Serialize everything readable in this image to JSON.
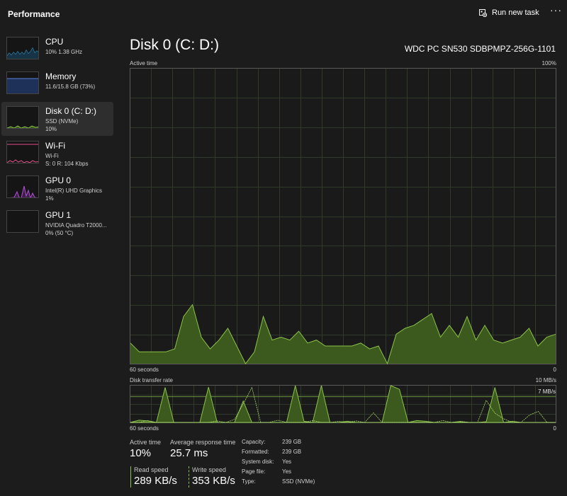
{
  "header": {
    "title": "Performance",
    "run_task_label": "Run new task",
    "more_label": "···"
  },
  "sidebar": {
    "items": [
      {
        "title": "CPU",
        "line1": "10%  1.38 GHz",
        "line2": "",
        "color": "#36a2d8"
      },
      {
        "title": "Memory",
        "line1": "11.6/15.8 GB (73%)",
        "line2": "",
        "color": "#5b7fd6"
      },
      {
        "title": "Disk 0 (C: D:)",
        "line1": "SSD (NVMe)",
        "line2": "10%",
        "color": "#8bc34a"
      },
      {
        "title": "Wi-Fi",
        "line1": "Wi-Fi",
        "line2": "S: 0  R: 104 Kbps",
        "color": "#e0508a"
      },
      {
        "title": "GPU 0",
        "line1": "Intel(R) UHD Graphics",
        "line2": "1%",
        "color": "#b64fd8"
      },
      {
        "title": "GPU 1",
        "line1": "NVIDIA Quadro T2000...",
        "line2": "0%  (50 °C)",
        "color": "#888888"
      }
    ]
  },
  "main": {
    "title": "Disk 0 (C: D:)",
    "model": "WDC PC SN530 SDBPMPZ-256G-1101",
    "active_chart": {
      "label": "Active time",
      "max_label": "100%",
      "time_label": "60 seconds",
      "min_label": "0"
    },
    "transfer_chart": {
      "label": "Disk transfer rate",
      "max_label": "10 MB/s",
      "marker_label": "7 MB/s",
      "time_label": "60 seconds",
      "min_label": "0"
    },
    "stats": {
      "active_time_label": "Active time",
      "active_time_value": "10%",
      "avg_response_label": "Average response time",
      "avg_response_value": "25.7 ms",
      "read_label": "Read speed",
      "read_value": "289 KB/s",
      "write_label": "Write speed",
      "write_value": "353 KB/s"
    },
    "properties": [
      {
        "key": "Capacity:",
        "value": "239 GB"
      },
      {
        "key": "Formatted:",
        "value": "239 GB"
      },
      {
        "key": "System disk:",
        "value": "Yes"
      },
      {
        "key": "Page file:",
        "value": "Yes"
      },
      {
        "key": "Type:",
        "value": "SSD (NVMe)"
      }
    ]
  },
  "colors": {
    "disk_line": "#8bc34a",
    "disk_fill": "#3d5a1e",
    "grid": "#2f3a2a"
  },
  "chart_data": [
    {
      "type": "area",
      "ylabel": "Active time",
      "ylim": [
        0,
        100
      ],
      "xlabel": "60 seconds",
      "values": [
        7,
        4,
        4,
        4,
        4,
        5,
        16,
        20,
        9,
        5,
        8,
        12,
        6,
        0,
        4,
        16,
        8,
        9,
        8,
        11,
        7,
        8,
        6,
        6,
        6,
        6,
        7,
        5,
        6,
        0,
        10,
        12,
        13,
        15,
        17,
        9,
        13,
        9,
        16,
        8,
        13,
        8,
        7,
        8,
        9,
        12,
        6,
        9,
        10
      ],
      "series": [
        {
          "name": "Active time",
          "color": "#8bc34a"
        }
      ]
    },
    {
      "type": "line",
      "ylabel": "Disk transfer rate",
      "ylim": [
        0,
        10
      ],
      "xlabel": "60 seconds",
      "annotation": "7 MB/s",
      "series": [
        {
          "values": [
            0,
            0.6,
            0.4,
            0,
            9.5,
            0,
            0,
            0,
            0,
            9.6,
            0,
            0,
            0,
            5.8,
            0,
            0,
            0,
            0,
            0,
            10,
            0.3,
            0,
            10,
            0,
            0,
            0.3,
            0,
            0,
            0,
            0,
            10,
            9,
            0,
            0.5,
            0.3,
            0,
            0,
            0,
            0.2,
            0,
            0,
            0.2,
            9.5,
            0,
            0.3,
            0,
            0,
            0,
            0,
            0
          ]
        },
        {
          "values": [
            0,
            0,
            0.5,
            0,
            0,
            0,
            0,
            0,
            0,
            0,
            0.4,
            0,
            0.8,
            5,
            9.5,
            0,
            0,
            0.6,
            0,
            0,
            0,
            0.5,
            0,
            0,
            0.3,
            0,
            0.4,
            0,
            2.6,
            0,
            0,
            0,
            0,
            0,
            0,
            0,
            0.5,
            0,
            0.3,
            0,
            0,
            6,
            2.5,
            1,
            0,
            0,
            2,
            3,
            0,
            0
          ]
        }
      ]
    }
  ]
}
